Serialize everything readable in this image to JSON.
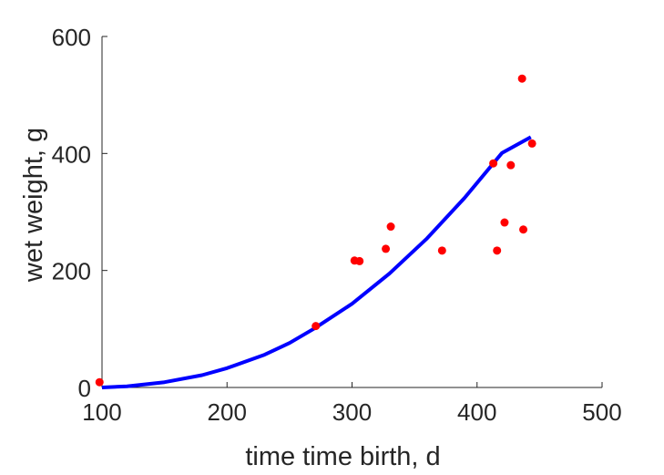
{
  "chart_data": {
    "type": "scatter",
    "title": "",
    "xlabel": "time time birth, d",
    "ylabel": "wet weight, g",
    "xlim": [
      100,
      500
    ],
    "ylim": [
      0,
      600
    ],
    "xticks": [
      100,
      200,
      300,
      400,
      500
    ],
    "yticks": [
      0,
      200,
      400,
      600
    ],
    "grid": false,
    "legend": "none",
    "series": [
      {
        "kind": "scatter",
        "color": "#ff0000",
        "points": [
          [
            98,
            9
          ],
          [
            271,
            105
          ],
          [
            302,
            217
          ],
          [
            306,
            216
          ],
          [
            327,
            237
          ],
          [
            331,
            275
          ],
          [
            372,
            234
          ],
          [
            413,
            383
          ],
          [
            416,
            234
          ],
          [
            422,
            282
          ],
          [
            427,
            380
          ],
          [
            436,
            528
          ],
          [
            437,
            270
          ],
          [
            444,
            417
          ]
        ]
      },
      {
        "kind": "line",
        "color": "#0000ff",
        "points": [
          [
            100,
            0
          ],
          [
            120,
            2
          ],
          [
            150,
            9
          ],
          [
            180,
            21
          ],
          [
            200,
            33
          ],
          [
            230,
            56
          ],
          [
            250,
            76
          ],
          [
            270,
            101
          ],
          [
            300,
            143
          ],
          [
            330,
            195
          ],
          [
            360,
            255
          ],
          [
            390,
            324
          ],
          [
            420,
            401
          ],
          [
            443,
            428
          ]
        ]
      }
    ]
  }
}
